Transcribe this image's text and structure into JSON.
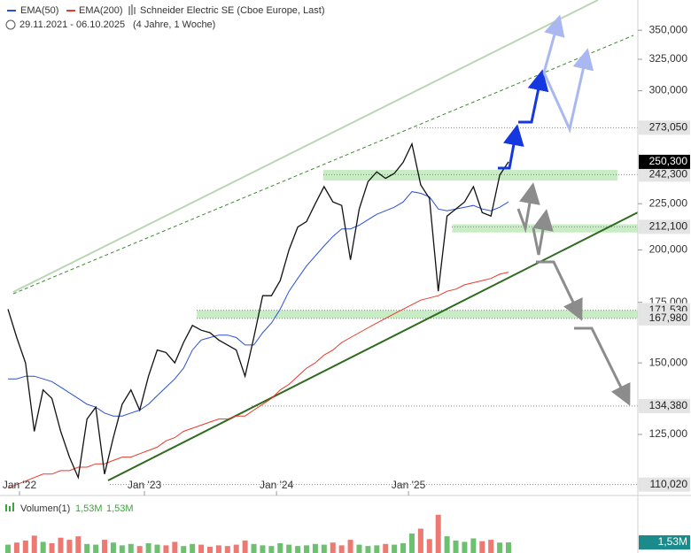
{
  "chart_data": {
    "type": "line",
    "title": "Schneider Electric SE (Cboe Europe, Last)",
    "subtitle": "29.11.2021 - 06.10.2025",
    "period": "(4 Jahre, 1 Woche)",
    "log_scale": true,
    "ylim": [
      107,
      378
    ],
    "yticks": [
      {
        "value": 350,
        "label": "350,000"
      },
      {
        "value": 325,
        "label": "325,000"
      },
      {
        "value": 300,
        "label": "300,000"
      },
      {
        "value": 225,
        "label": "225,000"
      },
      {
        "value": 200,
        "label": "200,000"
      },
      {
        "value": 175,
        "label": "175,000"
      },
      {
        "value": 150,
        "label": "150,000"
      },
      {
        "value": 125,
        "label": "125,000"
      }
    ],
    "xticks": [
      {
        "value": 1.31,
        "label": "Jan '22"
      },
      {
        "value": 15.54,
        "label": "Jan '23"
      },
      {
        "value": 30.58,
        "label": "Jan '24"
      },
      {
        "value": 45.61,
        "label": "Jan '25"
      }
    ],
    "series": [
      {
        "name": "Schneider Electric SE (Cboe Europe, Last)",
        "color": "#111111",
        "values": [
          172,
          160,
          150,
          126,
          140,
          137,
          126,
          118,
          112,
          130,
          134,
          113,
          124,
          135,
          140,
          133,
          145,
          155,
          154,
          150,
          158,
          165,
          163,
          162,
          159,
          157,
          155,
          145,
          160,
          178,
          178,
          185,
          200,
          212,
          215,
          225,
          235,
          226,
          224,
          195,
          222,
          238,
          244,
          240,
          243,
          250,
          262,
          236,
          228,
          180,
          218,
          222,
          226,
          235,
          220,
          218,
          242,
          250.3
        ]
      },
      {
        "name": "EMA(50)",
        "color": "#2a4fd6",
        "values": [
          144,
          144,
          145,
          145,
          144,
          143,
          141,
          139,
          137,
          135,
          134,
          132,
          131,
          131,
          132,
          133,
          135,
          138,
          141,
          144,
          148,
          155,
          159,
          160,
          161,
          161,
          160,
          157,
          157,
          162,
          166,
          172,
          180,
          186,
          192,
          197,
          202,
          207,
          211,
          211,
          213,
          216,
          219,
          221,
          223,
          226,
          232,
          231,
          229,
          222,
          221,
          222,
          223,
          224,
          222,
          221,
          223,
          226
        ]
      },
      {
        "name": "EMA(200)",
        "color": "#e8392a",
        "values": [
          109,
          110,
          111,
          112,
          113,
          113,
          114,
          114,
          115,
          115,
          116,
          116,
          117,
          118,
          118,
          119,
          120,
          121,
          123,
          124,
          126,
          127,
          128,
          129,
          130,
          130,
          131,
          131,
          133,
          135,
          137,
          140,
          142,
          145,
          148,
          150,
          153,
          155,
          158,
          160,
          162,
          164,
          166,
          168,
          170,
          172,
          174,
          176,
          177,
          178,
          180,
          181,
          183,
          184,
          185,
          186,
          188,
          189
        ]
      }
    ],
    "levels": [
      {
        "value": 273.05,
        "label": "273,050",
        "style": "gray"
      },
      {
        "value": 242.3,
        "label": "242,300",
        "style": "gray"
      },
      {
        "value": 212.1,
        "label": "212,100",
        "style": "gray"
      },
      {
        "value": 171.53,
        "label": "171,530",
        "style": "gray"
      },
      {
        "value": 167.98,
        "label": "167,980",
        "style": "gray"
      },
      {
        "value": 134.38,
        "label": "134,380",
        "style": "gray"
      },
      {
        "value": 110.02,
        "label": "110,020",
        "style": "gray"
      },
      {
        "value": 250.3,
        "label": "250,300",
        "style": "current"
      }
    ],
    "zones": [
      {
        "low": 238.7,
        "high": 245.2,
        "start": 35.9
      },
      {
        "low": 209.1,
        "high": 213.5,
        "start": 50.6
      },
      {
        "low": 167.98,
        "high": 171.53,
        "start": 21.5
      }
    ],
    "zone_color": "#c8ecc4",
    "volume": {
      "name": "Volumen(1)",
      "last": {
        "value": 1.53,
        "label": "1,53M"
      },
      "ylim": [
        0,
        7
      ],
      "up_color": "#6cc070",
      "down_color": "#ec7a72",
      "values": [
        1.2,
        1.5,
        1.8,
        2.5,
        1.6,
        1.4,
        2.2,
        1.9,
        2.4,
        1.3,
        1.2,
        1.9,
        1.5,
        1.1,
        1.3,
        1.0,
        1.4,
        1.2,
        1.1,
        1.6,
        1.0,
        1.3,
        1.2,
        0.9,
        1.1,
        1.0,
        1.2,
        1.8,
        1.3,
        1.1,
        1.0,
        1.4,
        1.2,
        1.0,
        1.1,
        1.3,
        1.2,
        1.5,
        1.1,
        1.9,
        1.2,
        1.0,
        1.1,
        1.3,
        1.2,
        1.4,
        2.8,
        3.5,
        2.0,
        5.5,
        2.4,
        1.8,
        1.6,
        2.1,
        1.7,
        1.9,
        1.5,
        1.53
      ]
    }
  }
}
